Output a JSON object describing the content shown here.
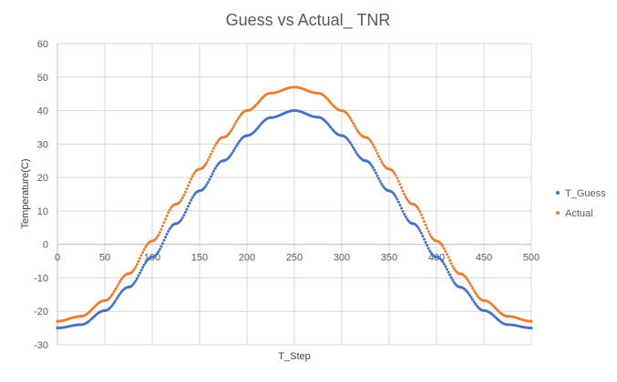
{
  "chart_data": {
    "type": "scatter",
    "title": "Guess vs Actual_ TNR",
    "xlabel": "T_Step",
    "ylabel": "Temperature(C)",
    "xlim": [
      0,
      500
    ],
    "ylim": [
      -30,
      60
    ],
    "xticks": [
      0,
      50,
      100,
      150,
      200,
      250,
      300,
      350,
      400,
      450,
      500
    ],
    "yticks": [
      -30,
      -20,
      -10,
      0,
      10,
      20,
      30,
      40,
      50,
      60
    ],
    "grid": true,
    "legend": "right",
    "series": [
      {
        "name": "T_Guess",
        "color": "#4472C4",
        "x": [
          0,
          25,
          50,
          75,
          100,
          125,
          150,
          175,
          200,
          225,
          250,
          275,
          300,
          325,
          350,
          375,
          400,
          425,
          450,
          475,
          500
        ],
        "y": [
          -25.0,
          -24.0,
          -19.8,
          -12.8,
          -3.8,
          6.2,
          16.0,
          25.0,
          32.5,
          37.9,
          40.0,
          38.0,
          32.5,
          25.0,
          16.0,
          6.2,
          -3.8,
          -12.8,
          -19.8,
          -24.0,
          -25.0
        ]
      },
      {
        "name": "Actual",
        "color": "#ED7D31",
        "x": [
          0,
          25,
          50,
          75,
          100,
          125,
          150,
          175,
          200,
          225,
          250,
          275,
          300,
          325,
          350,
          375,
          400,
          425,
          450,
          475,
          500
        ],
        "y": [
          -23.0,
          -21.5,
          -16.8,
          -8.8,
          1.0,
          12.0,
          22.5,
          32.0,
          40.0,
          45.2,
          47.0,
          45.2,
          40.0,
          32.0,
          22.5,
          12.0,
          1.0,
          -8.8,
          -16.8,
          -21.5,
          -23.0
        ]
      }
    ]
  }
}
